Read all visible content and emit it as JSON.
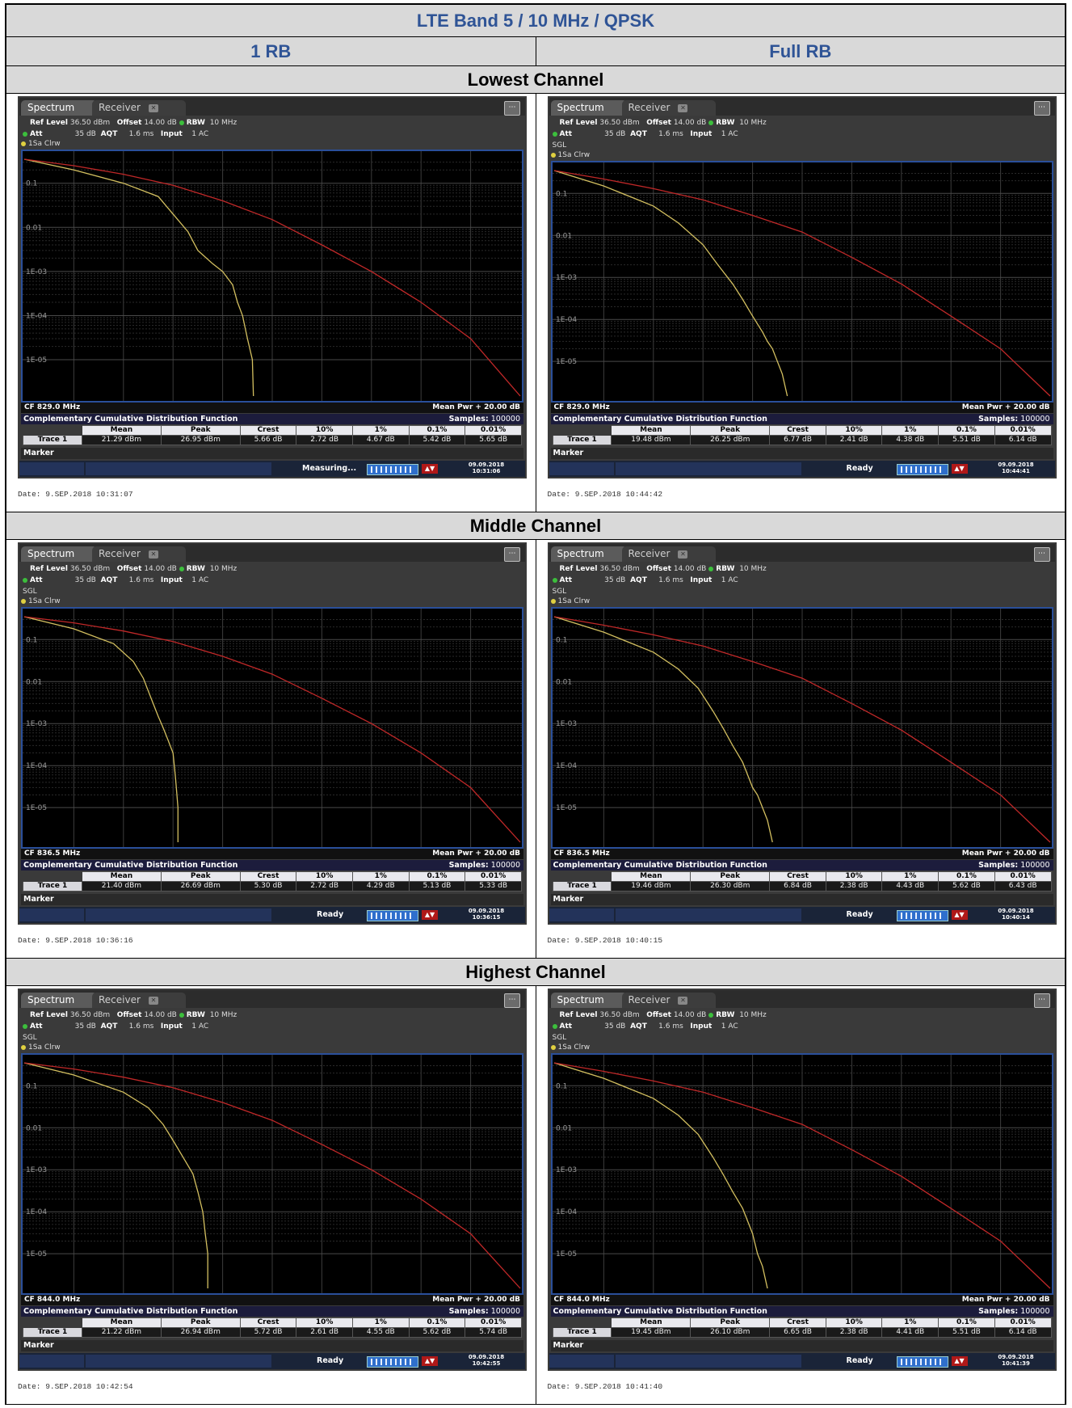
{
  "title": "LTE Band 5 / 10 MHz / QPSK",
  "columns": [
    "1 RB",
    "Full RB"
  ],
  "channels": [
    {
      "label": "Lowest Channel",
      "panels": [
        {
          "tab_spectrum": "Spectrum",
          "tab_receiver": "Receiver",
          "ref_level": "36.50 dBm",
          "offset": "14.00 dB",
          "rbw": "10 MHz",
          "att": "35 dB",
          "aqt": "1.6 ms",
          "input": "1 AC",
          "sgl": "",
          "trace_label": "1Sa Clrw",
          "cf": "CF 829.0 MHz",
          "mean_pwr": "Mean Pwr + 20.00 dB",
          "ccdf_title": "Complementary Cumulative Distribution Function",
          "samples_label": "Samples:",
          "samples": "100000",
          "table_headers": [
            "Mean",
            "Peak",
            "Crest",
            "10%",
            "1%",
            "0.1%",
            "0.01%"
          ],
          "trace_name": "Trace 1",
          "values": [
            "21.29 dBm",
            "26.95 dBm",
            "5.66 dB",
            "2.72 dB",
            "4.67 dB",
            "5.42 dB",
            "5.65 dB"
          ],
          "marker": "Marker",
          "status": "Measuring...",
          "instr_date": "09.09.2018",
          "instr_time": "10:31:06",
          "date": "Date: 9.SEP.2018  10:31:07",
          "y_ticks": [
            "0.1",
            "0.01",
            "1E-03",
            "1E-04",
            "1E-05"
          ],
          "chart_data": {
            "type": "line",
            "series": [
              {
                "color": "#d4c060",
                "x": [
                  0,
                  0.1,
                  0.2,
                  0.27,
                  0.3,
                  0.33,
                  0.35,
                  0.38,
                  0.4,
                  0.42,
                  0.43,
                  0.44,
                  0.45,
                  0.46,
                  0.462
                ],
                "y": [
                  0.35,
                  0.2,
                  0.1,
                  0.05,
                  0.02,
                  0.008,
                  0.003,
                  0.0015,
                  0.001,
                  0.0005,
                  0.0002,
                  0.0001,
                  3e-05,
                  1e-05,
                  1.5e-06
                ]
              },
              {
                "color": "#c02828",
                "x": [
                  0,
                  0.1,
                  0.2,
                  0.3,
                  0.4,
                  0.5,
                  0.6,
                  0.7,
                  0.8,
                  0.9,
                  1.0
                ],
                "y": [
                  0.35,
                  0.25,
                  0.16,
                  0.09,
                  0.04,
                  0.015,
                  0.004,
                  0.001,
                  0.0002,
                  3e-05,
                  1.5e-06
                ]
              }
            ]
          }
        },
        {
          "tab_spectrum": "Spectrum",
          "tab_receiver": "Receiver",
          "ref_level": "36.50 dBm",
          "offset": "14.00 dB",
          "rbw": "10 MHz",
          "att": "35 dB",
          "aqt": "1.6 ms",
          "input": "1 AC",
          "sgl": "SGL",
          "trace_label": "1Sa Clrw",
          "cf": "CF 829.0 MHz",
          "mean_pwr": "Mean Pwr + 20.00 dB",
          "ccdf_title": "Complementary Cumulative Distribution Function",
          "samples_label": "Samples:",
          "samples": "100000",
          "table_headers": [
            "Mean",
            "Peak",
            "Crest",
            "10%",
            "1%",
            "0.1%",
            "0.01%"
          ],
          "trace_name": "Trace 1",
          "values": [
            "19.48 dBm",
            "26.25 dBm",
            "6.77 dB",
            "2.41 dB",
            "4.38 dB",
            "5.51 dB",
            "6.14 dB"
          ],
          "marker": "Marker",
          "status": "Ready",
          "instr_date": "09.09.2018",
          "instr_time": "10:44:41",
          "date": "Date: 9.SEP.2018  10:44:42",
          "y_ticks": [
            "0.1",
            "0.01",
            "1E-03",
            "1E-04",
            "1E-05"
          ],
          "chart_data": {
            "type": "line",
            "series": [
              {
                "color": "#d4c060",
                "x": [
                  0,
                  0.1,
                  0.2,
                  0.25,
                  0.3,
                  0.33,
                  0.36,
                  0.38,
                  0.4,
                  0.42,
                  0.43,
                  0.44,
                  0.45,
                  0.46,
                  0.47
                ],
                "y": [
                  0.35,
                  0.15,
                  0.05,
                  0.02,
                  0.006,
                  0.002,
                  0.0007,
                  0.0003,
                  0.00012,
                  5e-05,
                  3e-05,
                  2e-05,
                  1e-05,
                  5e-06,
                  1.5e-06
                ]
              },
              {
                "color": "#c02828",
                "x": [
                  0,
                  0.1,
                  0.2,
                  0.3,
                  0.4,
                  0.5,
                  0.6,
                  0.7,
                  0.8,
                  0.9,
                  1.0
                ],
                "y": [
                  0.35,
                  0.22,
                  0.13,
                  0.07,
                  0.03,
                  0.012,
                  0.003,
                  0.0007,
                  0.00012,
                  2e-05,
                  1.5e-06
                ]
              }
            ]
          }
        }
      ]
    },
    {
      "label": "Middle Channel",
      "panels": [
        {
          "tab_spectrum": "Spectrum",
          "tab_receiver": "Receiver",
          "ref_level": "36.50 dBm",
          "offset": "14.00 dB",
          "rbw": "10 MHz",
          "att": "35 dB",
          "aqt": "1.6 ms",
          "input": "1 AC",
          "sgl": "SGL",
          "trace_label": "1Sa Clrw",
          "cf": "CF 836.5 MHz",
          "mean_pwr": "Mean Pwr + 20.00 dB",
          "ccdf_title": "Complementary Cumulative Distribution Function",
          "samples_label": "Samples:",
          "samples": "100000",
          "table_headers": [
            "Mean",
            "Peak",
            "Crest",
            "10%",
            "1%",
            "0.1%",
            "0.01%"
          ],
          "trace_name": "Trace 1",
          "values": [
            "21.40 dBm",
            "26.69 dBm",
            "5.30 dB",
            "2.72 dB",
            "4.29 dB",
            "5.13 dB",
            "5.33 dB"
          ],
          "marker": "Marker",
          "status": "Ready",
          "instr_date": "09.09.2018",
          "instr_time": "10:36:15",
          "date": "Date: 9.SEP.2018  10:36:16",
          "y_ticks": [
            "0.1",
            "0.01",
            "1E-03",
            "1E-04",
            "1E-05"
          ],
          "chart_data": {
            "type": "line",
            "series": [
              {
                "color": "#d4c060",
                "x": [
                  0,
                  0.1,
                  0.18,
                  0.22,
                  0.24,
                  0.25,
                  0.26,
                  0.27,
                  0.28,
                  0.29,
                  0.3,
                  0.305,
                  0.31,
                  0.31
                ],
                "y": [
                  0.35,
                  0.18,
                  0.08,
                  0.03,
                  0.012,
                  0.006,
                  0.003,
                  0.0015,
                  0.0008,
                  0.0004,
                  0.0002,
                  5e-05,
                  1e-05,
                  1.5e-06
                ]
              },
              {
                "color": "#c02828",
                "x": [
                  0,
                  0.1,
                  0.2,
                  0.3,
                  0.4,
                  0.5,
                  0.6,
                  0.7,
                  0.8,
                  0.9,
                  1.0
                ],
                "y": [
                  0.35,
                  0.25,
                  0.16,
                  0.09,
                  0.04,
                  0.015,
                  0.004,
                  0.001,
                  0.0002,
                  3e-05,
                  1.5e-06
                ]
              }
            ]
          }
        },
        {
          "tab_spectrum": "Spectrum",
          "tab_receiver": "Receiver",
          "ref_level": "36.50 dBm",
          "offset": "14.00 dB",
          "rbw": "10 MHz",
          "att": "35 dB",
          "aqt": "1.6 ms",
          "input": "1 AC",
          "sgl": "SGL",
          "trace_label": "1Sa Clrw",
          "cf": "CF 836.5 MHz",
          "mean_pwr": "Mean Pwr + 20.00 dB",
          "ccdf_title": "Complementary Cumulative Distribution Function",
          "samples_label": "Samples:",
          "samples": "100000",
          "table_headers": [
            "Mean",
            "Peak",
            "Crest",
            "10%",
            "1%",
            "0.1%",
            "0.01%"
          ],
          "trace_name": "Trace 1",
          "values": [
            "19.46 dBm",
            "26.30 dBm",
            "6.84 dB",
            "2.38 dB",
            "4.43 dB",
            "5.62 dB",
            "6.43 dB"
          ],
          "marker": "Marker",
          "status": "Ready",
          "instr_date": "09.09.2018",
          "instr_time": "10:40:14",
          "date": "Date: 9.SEP.2018  10:40:15",
          "y_ticks": [
            "0.1",
            "0.01",
            "1E-03",
            "1E-04",
            "1E-05"
          ],
          "chart_data": {
            "type": "line",
            "series": [
              {
                "color": "#d4c060",
                "x": [
                  0,
                  0.1,
                  0.2,
                  0.25,
                  0.29,
                  0.32,
                  0.34,
                  0.36,
                  0.38,
                  0.39,
                  0.4,
                  0.41,
                  0.42,
                  0.43,
                  0.44
                ],
                "y": [
                  0.35,
                  0.15,
                  0.05,
                  0.02,
                  0.007,
                  0.002,
                  0.0008,
                  0.0003,
                  0.00012,
                  6e-05,
                  3e-05,
                  2e-05,
                  1e-05,
                  5e-06,
                  1.5e-06
                ]
              },
              {
                "color": "#c02828",
                "x": [
                  0,
                  0.1,
                  0.2,
                  0.3,
                  0.4,
                  0.5,
                  0.6,
                  0.7,
                  0.8,
                  0.9,
                  1.0
                ],
                "y": [
                  0.35,
                  0.22,
                  0.13,
                  0.07,
                  0.03,
                  0.012,
                  0.003,
                  0.0007,
                  0.00012,
                  2e-05,
                  1.5e-06
                ]
              }
            ]
          }
        }
      ]
    },
    {
      "label": "Highest Channel",
      "panels": [
        {
          "tab_spectrum": "Spectrum",
          "tab_receiver": "Receiver",
          "ref_level": "36.50 dBm",
          "offset": "14.00 dB",
          "rbw": "10 MHz",
          "att": "35 dB",
          "aqt": "1.6 ms",
          "input": "1 AC",
          "sgl": "SGL",
          "trace_label": "1Sa Clrw",
          "cf": "CF 844.0 MHz",
          "mean_pwr": "Mean Pwr + 20.00 dB",
          "ccdf_title": "Complementary Cumulative Distribution Function",
          "samples_label": "Samples:",
          "samples": "100000",
          "table_headers": [
            "Mean",
            "Peak",
            "Crest",
            "10%",
            "1%",
            "0.1%",
            "0.01%"
          ],
          "trace_name": "Trace 1",
          "values": [
            "21.22 dBm",
            "26.94 dBm",
            "5.72 dB",
            "2.61 dB",
            "4.55 dB",
            "5.62 dB",
            "5.74 dB"
          ],
          "marker": "Marker",
          "status": "Ready",
          "instr_date": "09.09.2018",
          "instr_time": "10:42:55",
          "date": "Date: 9.SEP.2018  10:42:54",
          "y_ticks": [
            "0.1",
            "0.01",
            "1E-03",
            "1E-04",
            "1E-05"
          ],
          "chart_data": {
            "type": "line",
            "series": [
              {
                "color": "#d4c060",
                "x": [
                  0,
                  0.1,
                  0.2,
                  0.25,
                  0.28,
                  0.3,
                  0.32,
                  0.34,
                  0.35,
                  0.36,
                  0.365,
                  0.37,
                  0.37
                ],
                "y": [
                  0.35,
                  0.18,
                  0.07,
                  0.03,
                  0.012,
                  0.005,
                  0.002,
                  0.0008,
                  0.0003,
                  0.0001,
                  3e-05,
                  1e-05,
                  1.5e-06
                ]
              },
              {
                "color": "#c02828",
                "x": [
                  0,
                  0.1,
                  0.2,
                  0.3,
                  0.4,
                  0.5,
                  0.6,
                  0.7,
                  0.8,
                  0.9,
                  1.0
                ],
                "y": [
                  0.35,
                  0.25,
                  0.16,
                  0.09,
                  0.04,
                  0.015,
                  0.004,
                  0.001,
                  0.0002,
                  3e-05,
                  1.5e-06
                ]
              }
            ]
          }
        },
        {
          "tab_spectrum": "Spectrum",
          "tab_receiver": "Receiver",
          "ref_level": "36.50 dBm",
          "offset": "14.00 dB",
          "rbw": "10 MHz",
          "att": "35 dB",
          "aqt": "1.6 ms",
          "input": "1 AC",
          "sgl": "SGL",
          "trace_label": "1Sa Clrw",
          "cf": "CF 844.0 MHz",
          "mean_pwr": "Mean Pwr + 20.00 dB",
          "ccdf_title": "Complementary Cumulative Distribution Function",
          "samples_label": "Samples:",
          "samples": "100000",
          "table_headers": [
            "Mean",
            "Peak",
            "Crest",
            "10%",
            "1%",
            "0.1%",
            "0.01%"
          ],
          "trace_name": "Trace 1",
          "values": [
            "19.45 dBm",
            "26.10 dBm",
            "6.65 dB",
            "2.38 dB",
            "4.41 dB",
            "5.51 dB",
            "6.14 dB"
          ],
          "marker": "Marker",
          "status": "Ready",
          "instr_date": "09.09.2018",
          "instr_time": "10:41:39",
          "date": "Date: 9.SEP.2018  10:41:40",
          "y_ticks": [
            "0.1",
            "0.01",
            "1E-03",
            "1E-04",
            "1E-05"
          ],
          "chart_data": {
            "type": "line",
            "series": [
              {
                "color": "#d4c060",
                "x": [
                  0,
                  0.1,
                  0.2,
                  0.25,
                  0.29,
                  0.32,
                  0.34,
                  0.36,
                  0.38,
                  0.39,
                  0.4,
                  0.41,
                  0.42,
                  0.43
                ],
                "y": [
                  0.35,
                  0.15,
                  0.05,
                  0.02,
                  0.007,
                  0.002,
                  0.0008,
                  0.0003,
                  0.00012,
                  6e-05,
                  3e-05,
                  1e-05,
                  5e-06,
                  1.5e-06
                ]
              },
              {
                "color": "#c02828",
                "x": [
                  0,
                  0.1,
                  0.2,
                  0.3,
                  0.4,
                  0.5,
                  0.6,
                  0.7,
                  0.8,
                  0.9,
                  1.0
                ],
                "y": [
                  0.35,
                  0.22,
                  0.13,
                  0.07,
                  0.03,
                  0.012,
                  0.003,
                  0.0007,
                  0.00012,
                  2e-05,
                  1.5e-06
                ]
              }
            ]
          }
        }
      ]
    }
  ]
}
